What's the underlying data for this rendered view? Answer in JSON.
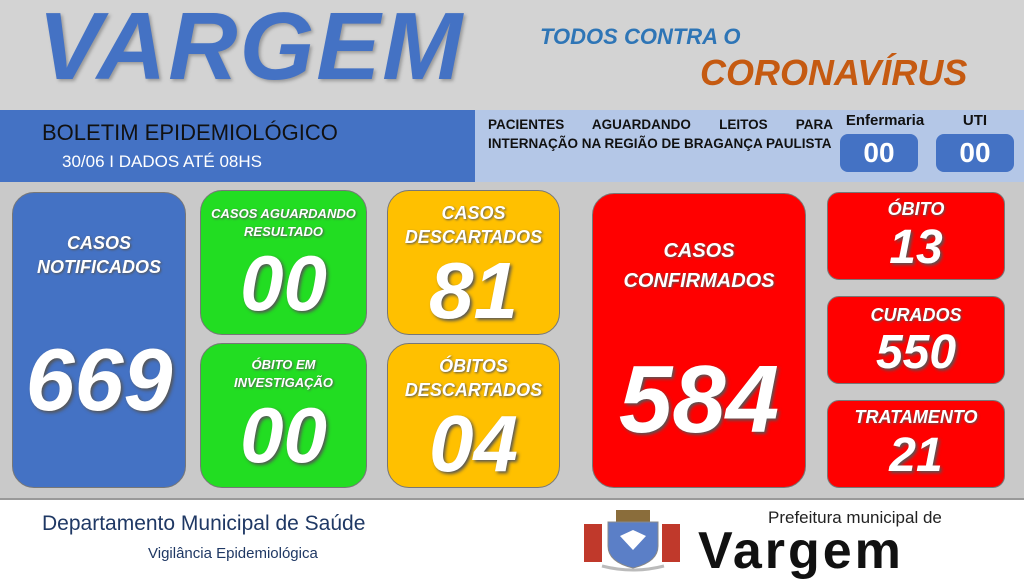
{
  "header": {
    "title": "VARGEM",
    "slogan_1": "TODOS CONTRA O",
    "slogan_2": "CORONAVÍRUS"
  },
  "bulletin": {
    "title": "BOLETIM EPIDEMIOLÓGICO",
    "date": "30/06 I DADOS ATÉ 08HS"
  },
  "beds": {
    "text": "PACIENTES AGUARDANDO LEITOS PARA INTERNAÇÃO NA REGIÃO DE BRAGANÇA PAULISTA",
    "ward_label": "Enfermaria",
    "ward_value": "00",
    "icu_label": "UTI",
    "icu_value": "00"
  },
  "cards": {
    "notified": {
      "label": "CASOS NOTIFICADOS",
      "value": "669"
    },
    "awaiting": {
      "label": "CASOS AGUARDANDO RESULTADO",
      "value": "00"
    },
    "death_investigation": {
      "label": "ÓBITO EM INVESTIGAÇÃO",
      "value": "00"
    },
    "discarded": {
      "label": "CASOS DESCARTADOS",
      "value": "81"
    },
    "deaths_discarded": {
      "label": "ÓBITOS DESCARTADOS",
      "value": "04"
    },
    "confirmed": {
      "label": "CASOS CONFIRMADOS",
      "value": "584"
    },
    "deaths": {
      "label": "ÓBITO",
      "value": "13"
    },
    "recovered": {
      "label": "CURADOS",
      "value": "550"
    },
    "treatment": {
      "label": "TRATAMENTO",
      "value": "21"
    }
  },
  "footer": {
    "department": "Departamento Municipal de Saúde",
    "unit": "Vigilância Epidemiológica",
    "logo_small": "Prefeitura municipal de",
    "logo_big": "Vargem"
  },
  "colors": {
    "blue": "#4472c4",
    "green": "#22dd22",
    "yellow": "#ffc000",
    "red": "#ff0000"
  }
}
